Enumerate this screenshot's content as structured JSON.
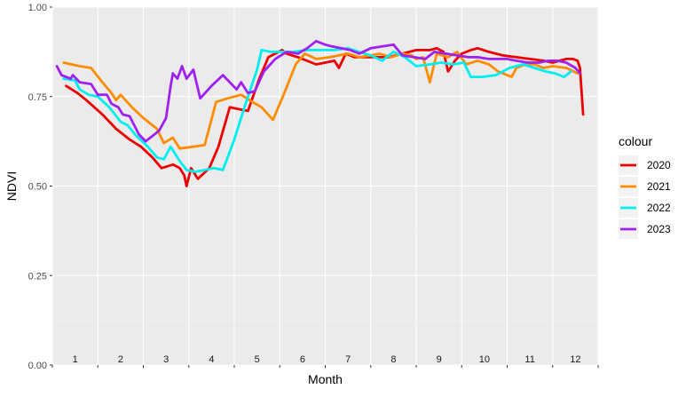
{
  "chart_data": {
    "type": "line",
    "xlabel": "Month",
    "ylabel": "NDVI",
    "xlim": [
      0,
      12
    ],
    "ylim": [
      0,
      1
    ],
    "y_ticks": [
      {
        "value": 0.0,
        "label": "0.00"
      },
      {
        "value": 0.25,
        "label": "0.25"
      },
      {
        "value": 0.5,
        "label": "0.50"
      },
      {
        "value": 0.75,
        "label": "0.75"
      },
      {
        "value": 1.0,
        "label": "1.00"
      }
    ],
    "x_tick_labels": [
      "1",
      "2",
      "3",
      "4",
      "5",
      "6",
      "7",
      "8",
      "9",
      "10",
      "11",
      "12"
    ],
    "grid": true,
    "legend": {
      "title": "colour",
      "position": "right"
    },
    "series": [
      {
        "name": "2020",
        "color": "#ee0000",
        "points": [
          [
            0.3,
            0.78
          ],
          [
            0.55,
            0.76
          ],
          [
            0.75,
            0.74
          ],
          [
            1.1,
            0.7
          ],
          [
            1.4,
            0.66
          ],
          [
            1.7,
            0.63
          ],
          [
            1.95,
            0.61
          ],
          [
            2.2,
            0.58
          ],
          [
            2.4,
            0.55
          ],
          [
            2.65,
            0.56
          ],
          [
            2.8,
            0.55
          ],
          [
            2.9,
            0.53
          ],
          [
            2.95,
            0.5
          ],
          [
            3.05,
            0.55
          ],
          [
            3.2,
            0.52
          ],
          [
            3.45,
            0.55
          ],
          [
            3.65,
            0.61
          ],
          [
            3.9,
            0.72
          ],
          [
            4.1,
            0.715
          ],
          [
            4.3,
            0.71
          ],
          [
            4.55,
            0.8
          ],
          [
            4.75,
            0.86
          ],
          [
            4.9,
            0.87
          ],
          [
            5.05,
            0.88
          ],
          [
            5.15,
            0.87
          ],
          [
            5.4,
            0.86
          ],
          [
            5.6,
            0.85
          ],
          [
            5.8,
            0.84
          ],
          [
            6.0,
            0.845
          ],
          [
            6.2,
            0.85
          ],
          [
            6.3,
            0.83
          ],
          [
            6.45,
            0.87
          ],
          [
            6.65,
            0.86
          ],
          [
            7.0,
            0.86
          ],
          [
            7.4,
            0.86
          ],
          [
            7.7,
            0.87
          ],
          [
            8.0,
            0.88
          ],
          [
            8.3,
            0.88
          ],
          [
            8.45,
            0.885
          ],
          [
            8.6,
            0.875
          ],
          [
            8.7,
            0.82
          ],
          [
            8.85,
            0.85
          ],
          [
            9.0,
            0.87
          ],
          [
            9.2,
            0.88
          ],
          [
            9.35,
            0.885
          ],
          [
            9.6,
            0.875
          ],
          [
            9.9,
            0.865
          ],
          [
            10.2,
            0.86
          ],
          [
            10.5,
            0.855
          ],
          [
            10.8,
            0.85
          ],
          [
            11.0,
            0.845
          ],
          [
            11.15,
            0.85
          ],
          [
            11.3,
            0.855
          ],
          [
            11.45,
            0.855
          ],
          [
            11.55,
            0.85
          ],
          [
            11.6,
            0.83
          ],
          [
            11.67,
            0.7
          ]
        ]
      },
      {
        "name": "2021",
        "color": "#ff8c00",
        "points": [
          [
            0.25,
            0.845
          ],
          [
            0.6,
            0.835
          ],
          [
            0.85,
            0.83
          ],
          [
            1.1,
            0.79
          ],
          [
            1.3,
            0.76
          ],
          [
            1.4,
            0.74
          ],
          [
            1.5,
            0.755
          ],
          [
            1.75,
            0.72
          ],
          [
            2.0,
            0.69
          ],
          [
            2.3,
            0.66
          ],
          [
            2.45,
            0.62
          ],
          [
            2.65,
            0.635
          ],
          [
            2.8,
            0.605
          ],
          [
            3.1,
            0.61
          ],
          [
            3.35,
            0.615
          ],
          [
            3.6,
            0.735
          ],
          [
            3.85,
            0.745
          ],
          [
            4.15,
            0.755
          ],
          [
            4.4,
            0.735
          ],
          [
            4.6,
            0.72
          ],
          [
            4.85,
            0.685
          ],
          [
            5.1,
            0.76
          ],
          [
            5.35,
            0.84
          ],
          [
            5.55,
            0.87
          ],
          [
            5.8,
            0.855
          ],
          [
            6.1,
            0.86
          ],
          [
            6.3,
            0.865
          ],
          [
            6.5,
            0.87
          ],
          [
            6.75,
            0.86
          ],
          [
            7.0,
            0.865
          ],
          [
            7.2,
            0.87
          ],
          [
            7.45,
            0.86
          ],
          [
            7.7,
            0.87
          ],
          [
            7.9,
            0.865
          ],
          [
            8.0,
            0.855
          ],
          [
            8.15,
            0.86
          ],
          [
            8.3,
            0.79
          ],
          [
            8.45,
            0.87
          ],
          [
            8.7,
            0.86
          ],
          [
            8.9,
            0.875
          ],
          [
            9.1,
            0.84
          ],
          [
            9.35,
            0.85
          ],
          [
            9.6,
            0.84
          ],
          [
            9.8,
            0.82
          ],
          [
            10.0,
            0.81
          ],
          [
            10.1,
            0.805
          ],
          [
            10.2,
            0.83
          ],
          [
            10.4,
            0.84
          ],
          [
            10.6,
            0.84
          ],
          [
            10.8,
            0.83
          ],
          [
            11.0,
            0.835
          ],
          [
            11.3,
            0.83
          ],
          [
            11.55,
            0.815
          ]
        ]
      },
      {
        "name": "2022",
        "color": "#00eeee",
        "points": [
          [
            0.25,
            0.8
          ],
          [
            0.5,
            0.795
          ],
          [
            0.6,
            0.77
          ],
          [
            0.8,
            0.755
          ],
          [
            1.0,
            0.75
          ],
          [
            1.25,
            0.72
          ],
          [
            1.5,
            0.68
          ],
          [
            1.65,
            0.67
          ],
          [
            1.85,
            0.64
          ],
          [
            2.1,
            0.61
          ],
          [
            2.3,
            0.58
          ],
          [
            2.45,
            0.575
          ],
          [
            2.6,
            0.61
          ],
          [
            2.8,
            0.57
          ],
          [
            2.95,
            0.545
          ],
          [
            3.15,
            0.54
          ],
          [
            3.35,
            0.545
          ],
          [
            3.55,
            0.55
          ],
          [
            3.75,
            0.545
          ],
          [
            4.0,
            0.63
          ],
          [
            4.25,
            0.73
          ],
          [
            4.5,
            0.825
          ],
          [
            4.6,
            0.88
          ],
          [
            4.8,
            0.875
          ],
          [
            5.05,
            0.875
          ],
          [
            5.3,
            0.875
          ],
          [
            5.6,
            0.88
          ],
          [
            5.9,
            0.88
          ],
          [
            6.2,
            0.88
          ],
          [
            6.5,
            0.885
          ],
          [
            6.75,
            0.875
          ],
          [
            7.0,
            0.865
          ],
          [
            7.25,
            0.85
          ],
          [
            7.5,
            0.875
          ],
          [
            7.75,
            0.86
          ],
          [
            8.0,
            0.835
          ],
          [
            8.3,
            0.84
          ],
          [
            8.55,
            0.845
          ],
          [
            8.8,
            0.84
          ],
          [
            9.05,
            0.845
          ],
          [
            9.2,
            0.805
          ],
          [
            9.45,
            0.805
          ],
          [
            9.75,
            0.81
          ],
          [
            10.05,
            0.83
          ],
          [
            10.35,
            0.84
          ],
          [
            10.6,
            0.83
          ],
          [
            10.85,
            0.82
          ],
          [
            11.05,
            0.815
          ],
          [
            11.25,
            0.805
          ],
          [
            11.4,
            0.82
          ]
        ]
      },
      {
        "name": "2023",
        "color": "#a020f0",
        "points": [
          [
            0.1,
            0.835
          ],
          [
            0.2,
            0.81
          ],
          [
            0.4,
            0.8
          ],
          [
            0.45,
            0.81
          ],
          [
            0.6,
            0.79
          ],
          [
            0.85,
            0.785
          ],
          [
            1.0,
            0.755
          ],
          [
            1.2,
            0.755
          ],
          [
            1.3,
            0.73
          ],
          [
            1.45,
            0.72
          ],
          [
            1.55,
            0.7
          ],
          [
            1.7,
            0.695
          ],
          [
            1.9,
            0.645
          ],
          [
            2.05,
            0.625
          ],
          [
            2.2,
            0.64
          ],
          [
            2.35,
            0.655
          ],
          [
            2.5,
            0.69
          ],
          [
            2.6,
            0.78
          ],
          [
            2.65,
            0.815
          ],
          [
            2.75,
            0.8
          ],
          [
            2.85,
            0.835
          ],
          [
            2.95,
            0.8
          ],
          [
            3.1,
            0.825
          ],
          [
            3.25,
            0.745
          ],
          [
            3.5,
            0.78
          ],
          [
            3.75,
            0.81
          ],
          [
            3.9,
            0.79
          ],
          [
            4.05,
            0.77
          ],
          [
            4.15,
            0.79
          ],
          [
            4.3,
            0.76
          ],
          [
            4.45,
            0.765
          ],
          [
            4.65,
            0.82
          ],
          [
            4.9,
            0.855
          ],
          [
            5.15,
            0.875
          ],
          [
            5.4,
            0.87
          ],
          [
            5.6,
            0.885
          ],
          [
            5.8,
            0.905
          ],
          [
            6.0,
            0.895
          ],
          [
            6.15,
            0.89
          ],
          [
            6.35,
            0.885
          ],
          [
            6.55,
            0.88
          ],
          [
            6.75,
            0.87
          ],
          [
            7.0,
            0.885
          ],
          [
            7.25,
            0.89
          ],
          [
            7.5,
            0.895
          ],
          [
            7.7,
            0.865
          ],
          [
            7.95,
            0.86
          ],
          [
            8.2,
            0.855
          ],
          [
            8.4,
            0.875
          ],
          [
            8.65,
            0.87
          ],
          [
            8.9,
            0.865
          ],
          [
            9.15,
            0.86
          ],
          [
            9.35,
            0.86
          ],
          [
            9.6,
            0.855
          ],
          [
            9.85,
            0.855
          ],
          [
            10.0,
            0.855
          ],
          [
            10.2,
            0.85
          ],
          [
            10.45,
            0.845
          ],
          [
            10.7,
            0.845
          ],
          [
            10.9,
            0.85
          ],
          [
            11.1,
            0.85
          ],
          [
            11.3,
            0.845
          ],
          [
            11.5,
            0.83
          ],
          [
            11.6,
            0.815
          ]
        ]
      }
    ]
  }
}
